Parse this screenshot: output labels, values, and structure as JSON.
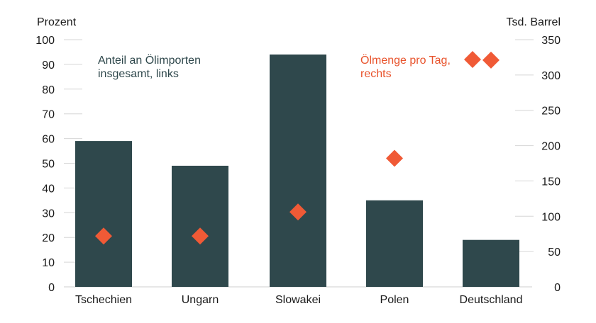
{
  "chart_data": {
    "type": "bar",
    "categories": [
      "Tschechien",
      "Ungarn",
      "Slowakei",
      "Polen",
      "Deutschland"
    ],
    "series": [
      {
        "name": "Anteil an Ölimporten insgesamt, links",
        "kind": "bar",
        "axis": "left",
        "color": "#2f484c",
        "values": [
          59,
          49,
          94,
          35,
          19
        ]
      },
      {
        "name": "Ölmenge pro Tag, rechts",
        "kind": "diamond",
        "axis": "right",
        "color": "#f05a36",
        "values": [
          72,
          72,
          106,
          182,
          321
        ]
      }
    ],
    "y_left": {
      "label": "Prozent",
      "min": 0,
      "max": 100,
      "ticks": [
        0,
        10,
        20,
        30,
        40,
        50,
        60,
        70,
        80,
        90,
        100
      ]
    },
    "y_right": {
      "label": "Tsd. Barrel",
      "min": 0,
      "max": 350,
      "ticks": [
        0,
        50,
        100,
        150,
        200,
        250,
        300,
        350
      ]
    },
    "annotations": {
      "left_line1": "Anteil an Ölimporten",
      "left_line2": "insgesamt, links",
      "right_line1": "Ölmenge pro Tag,",
      "right_line2": "rechts"
    },
    "grid": true
  }
}
